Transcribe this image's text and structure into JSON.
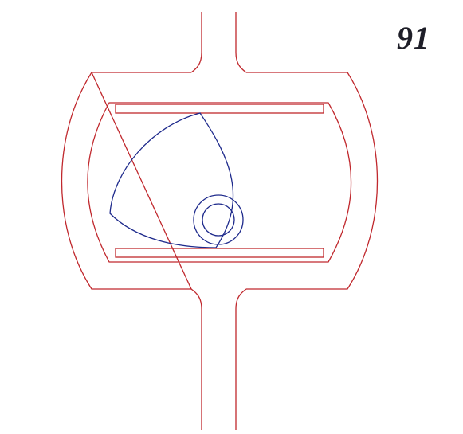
{
  "figure": {
    "number": "91"
  },
  "colors": {
    "frame": "#c0282d",
    "cam": "#1e2a8c",
    "text": "#1e1e28",
    "background": "#ffffff"
  }
}
